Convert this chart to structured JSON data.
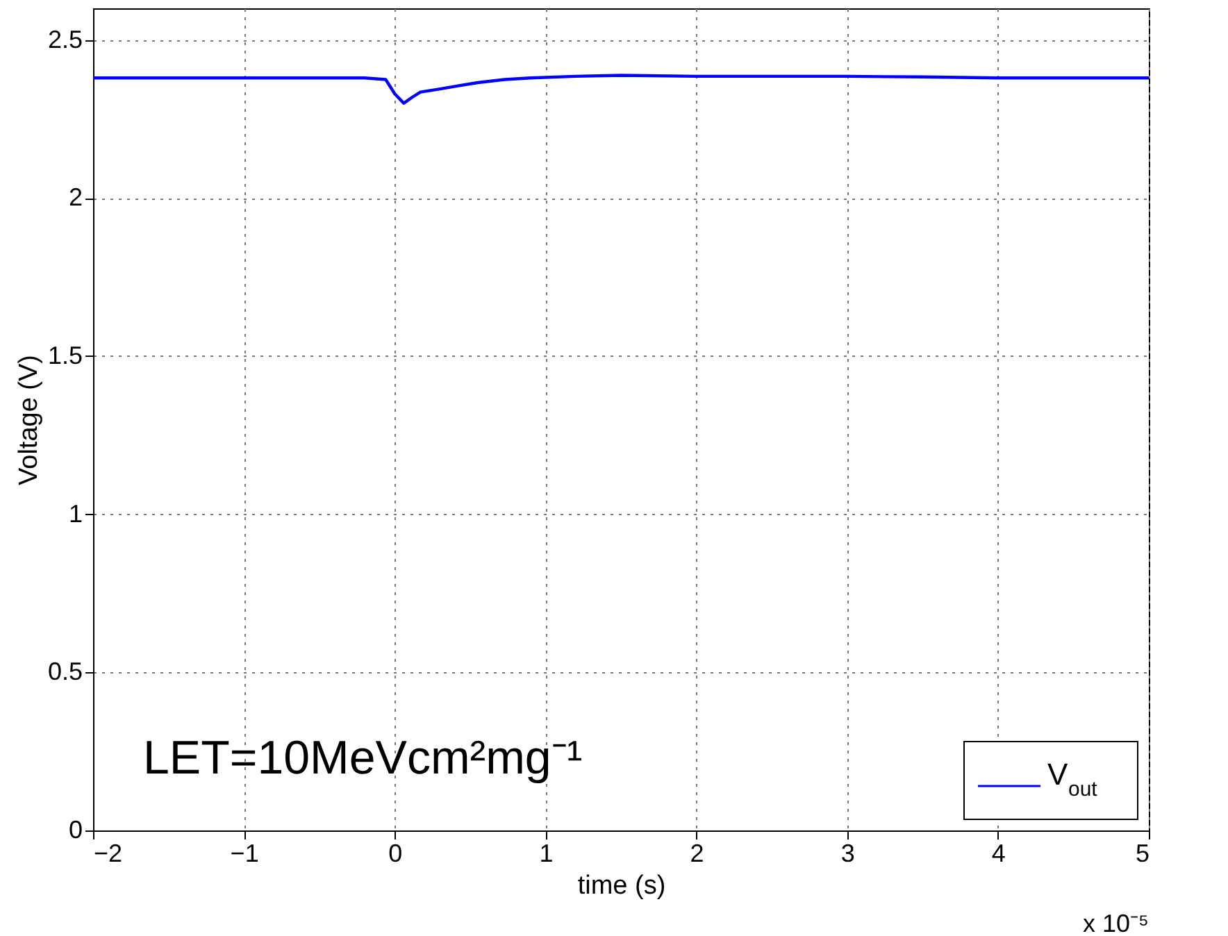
{
  "chart_data": {
    "type": "line",
    "xlabel": "time (s)",
    "ylabel": "Voltage (V)",
    "xlim": [
      -2,
      5
    ],
    "xticks": [
      -2,
      -1,
      0,
      1,
      2,
      3,
      4,
      5
    ],
    "ylim": [
      0,
      2.6
    ],
    "yticks": [
      0,
      0.5,
      1,
      1.5,
      2,
      2.5
    ],
    "grid": true,
    "legend": "bottom right",
    "annotations": [
      "LET=10MeVcm²mg⁻¹",
      "x 10⁻⁵"
    ],
    "series": [
      {
        "name": "V$_{out}$",
        "color": "#0000ff",
        "x": [
          -2,
          -1.5,
          -1,
          -0.5,
          -0.2,
          -0.06,
          0.0,
          0.06,
          0.12,
          0.17,
          0.3,
          0.42,
          0.55,
          0.73,
          0.9,
          1.2,
          1.5,
          2,
          2.5,
          3,
          3.5,
          4,
          4.5,
          5
        ],
        "values": [
          2.38,
          2.38,
          2.38,
          2.38,
          2.38,
          2.375,
          2.33,
          2.3,
          2.32,
          2.335,
          2.345,
          2.355,
          2.365,
          2.375,
          2.38,
          2.385,
          2.388,
          2.385,
          2.385,
          2.385,
          2.383,
          2.38,
          2.38,
          2.38
        ]
      }
    ]
  }
}
